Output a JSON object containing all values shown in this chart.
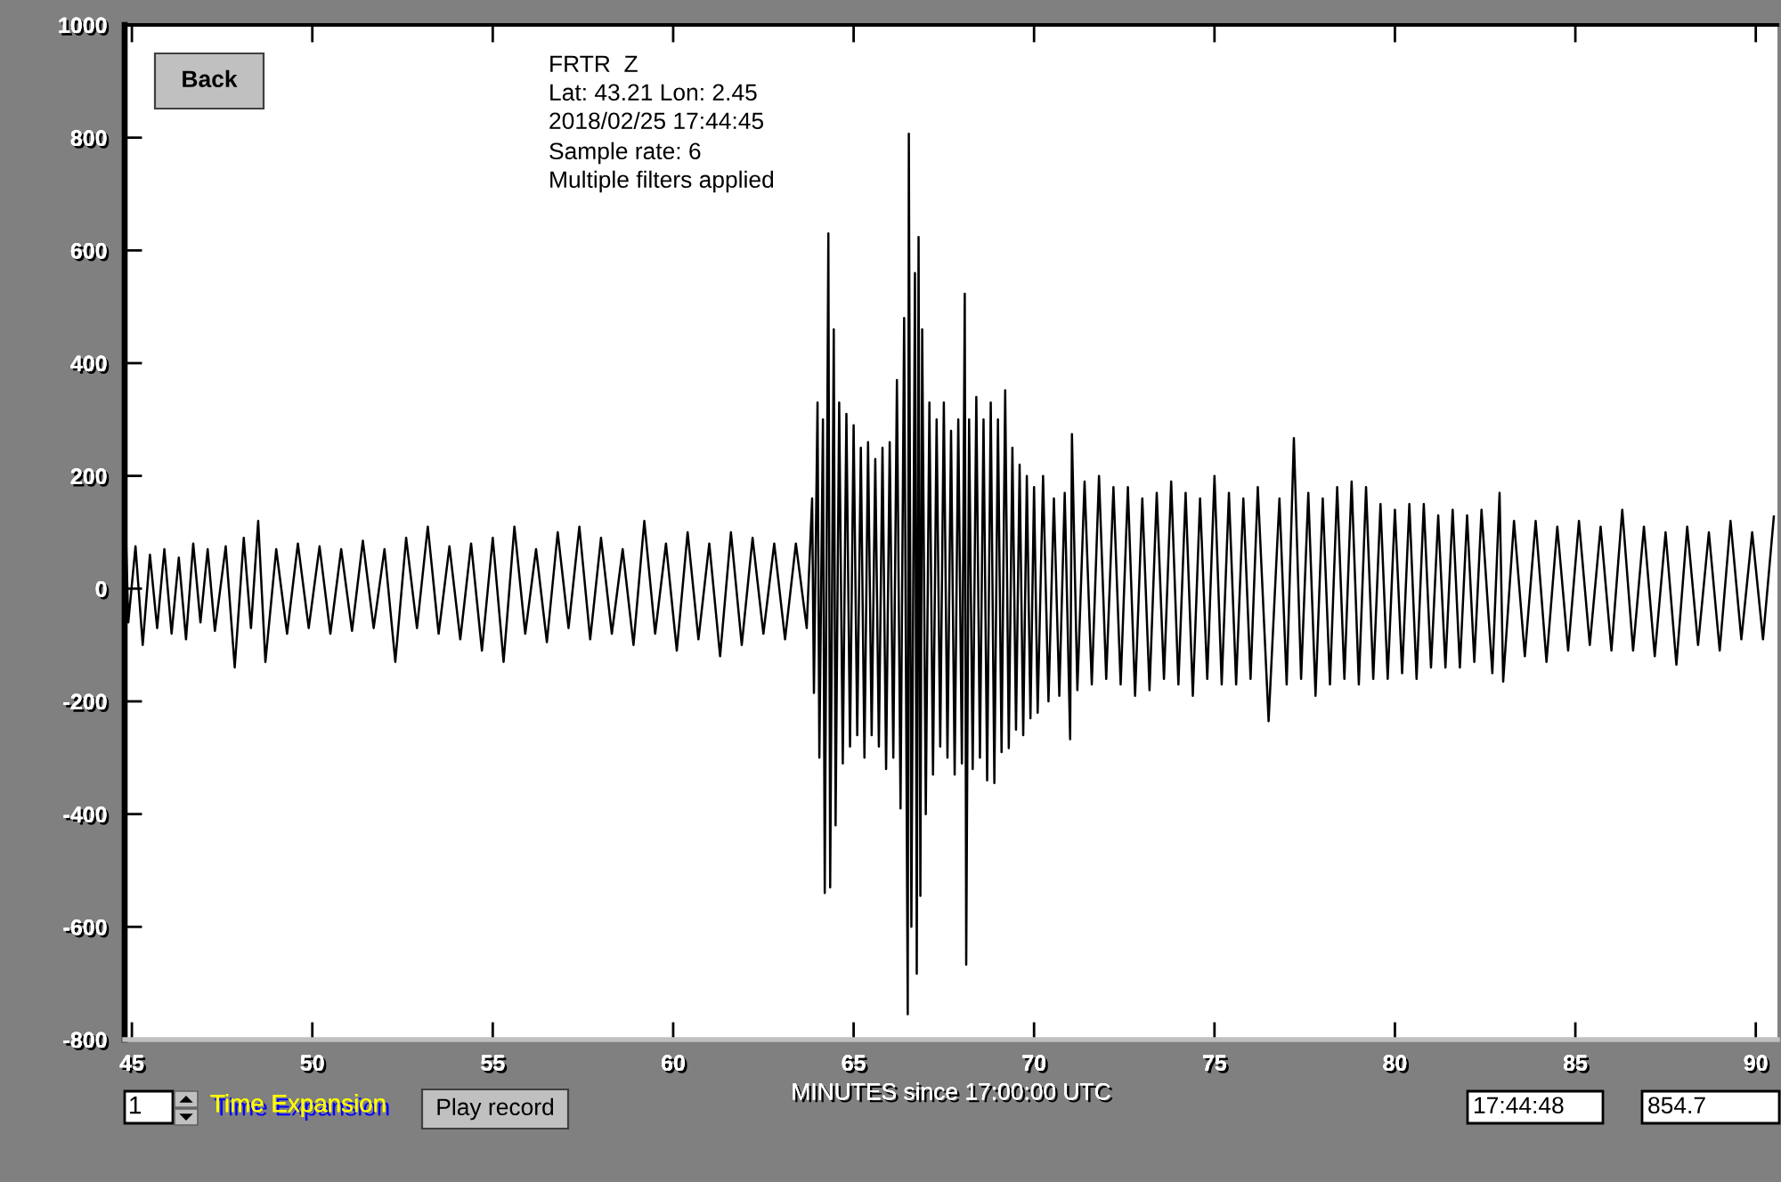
{
  "chart_data": {
    "type": "line",
    "title": "FRTR  Z",
    "xlabel": "MINUTES since 17:00:00 UTC",
    "annotations": [
      "Lat: 43.21 Lon: 2.45",
      "2018/02/25 17:44:45",
      "Sample rate: 6",
      "Multiple filters applied",
      "Back",
      "1",
      "Time Expansion",
      "Play record",
      "17:44:48",
      "854.7"
    ],
    "xlim": [
      44.8,
      90.6
    ],
    "xticks": [
      45,
      50,
      55,
      60,
      65,
      70,
      75,
      80,
      85,
      90
    ],
    "ylim": [
      -800,
      1000
    ],
    "yticks": [
      -800,
      -600,
      -400,
      -200,
      0,
      200,
      400,
      600,
      800,
      1000
    ],
    "x": [
      44.82,
      44.9,
      45.1,
      45.3,
      45.5,
      45.7,
      45.9,
      46.1,
      46.3,
      46.5,
      46.7,
      46.9,
      47.1,
      47.3,
      47.6,
      47.85,
      48.1,
      48.3,
      48.5,
      48.7,
      49.0,
      49.3,
      49.6,
      49.9,
      50.2,
      50.5,
      50.8,
      51.1,
      51.4,
      51.7,
      52.0,
      52.3,
      52.6,
      52.9,
      53.2,
      53.5,
      53.8,
      54.1,
      54.4,
      54.7,
      55.0,
      55.3,
      55.6,
      55.9,
      56.2,
      56.5,
      56.8,
      57.1,
      57.4,
      57.7,
      58.0,
      58.3,
      58.6,
      58.9,
      59.2,
      59.5,
      59.8,
      60.1,
      60.4,
      60.7,
      61.0,
      61.3,
      61.6,
      61.9,
      62.2,
      62.5,
      62.8,
      63.1,
      63.4,
      63.7,
      63.85,
      63.9,
      64.0,
      64.05,
      64.15,
      64.2,
      64.3,
      64.35,
      64.45,
      64.5,
      64.6,
      64.7,
      64.8,
      64.9,
      65.0,
      65.1,
      65.2,
      65.3,
      65.4,
      65.5,
      65.6,
      65.7,
      65.8,
      65.9,
      66.0,
      66.1,
      66.2,
      66.3,
      66.4,
      66.5,
      66.53,
      66.6,
      66.7,
      66.75,
      66.8,
      66.85,
      66.9,
      67.0,
      67.1,
      67.2,
      67.3,
      67.4,
      67.5,
      67.6,
      67.7,
      67.8,
      67.9,
      68.0,
      68.08,
      68.12,
      68.2,
      68.3,
      68.4,
      68.5,
      68.6,
      68.7,
      68.8,
      68.9,
      69.0,
      69.1,
      69.2,
      69.3,
      69.4,
      69.5,
      69.6,
      69.7,
      69.8,
      69.9,
      70.0,
      70.1,
      70.25,
      70.4,
      70.55,
      70.7,
      70.85,
      71.0,
      71.05,
      71.2,
      71.4,
      71.6,
      71.8,
      72.0,
      72.2,
      72.4,
      72.6,
      72.8,
      73.0,
      73.2,
      73.4,
      73.6,
      73.8,
      74.0,
      74.2,
      74.4,
      74.6,
      74.8,
      75.0,
      75.2,
      75.4,
      75.6,
      75.8,
      76.0,
      76.2,
      76.5,
      76.8,
      77.0,
      77.2,
      77.4,
      77.6,
      77.8,
      78.0,
      78.2,
      78.4,
      78.6,
      78.8,
      79.0,
      79.2,
      79.4,
      79.6,
      79.8,
      80.0,
      80.2,
      80.4,
      80.6,
      80.8,
      81.0,
      81.2,
      81.4,
      81.6,
      81.8,
      82.0,
      82.2,
      82.4,
      82.7,
      82.9,
      83.0,
      83.3,
      83.6,
      83.9,
      84.2,
      84.5,
      84.8,
      85.1,
      85.4,
      85.7,
      86.0,
      86.3,
      86.6,
      86.9,
      87.2,
      87.5,
      87.8,
      88.1,
      88.4,
      88.7,
      89.0,
      89.3,
      89.6,
      89.9,
      90.2,
      90.5
    ],
    "series": [
      {
        "color": "#000000",
        "values": [
          130,
          -60,
          75,
          -100,
          60,
          -70,
          70,
          -80,
          55,
          -90,
          80,
          -60,
          70,
          -75,
          75,
          -140,
          90,
          -70,
          120,
          -130,
          70,
          -80,
          80,
          -70,
          75,
          -80,
          70,
          -75,
          85,
          -70,
          70,
          -130,
          90,
          -70,
          110,
          -80,
          75,
          -90,
          80,
          -110,
          90,
          -130,
          110,
          -80,
          70,
          -95,
          100,
          -70,
          110,
          -90,
          90,
          -80,
          70,
          -100,
          120,
          -80,
          80,
          -110,
          100,
          -90,
          80,
          -120,
          100,
          -100,
          90,
          -80,
          80,
          -90,
          80,
          -70,
          160,
          -185,
          330,
          -300,
          300,
          -540,
          630,
          -530,
          460,
          -420,
          330,
          -310,
          310,
          -280,
          290,
          -260,
          250,
          -300,
          260,
          -260,
          230,
          -280,
          250,
          -320,
          260,
          -300,
          370,
          -390,
          480,
          -755,
          807,
          -600,
          560,
          -683,
          624,
          -545,
          460,
          -400,
          330,
          -330,
          300,
          -280,
          330,
          -300,
          280,
          -330,
          300,
          -310,
          523,
          -667,
          300,
          -320,
          340,
          -300,
          300,
          -340,
          330,
          -345,
          300,
          -290,
          352,
          -283,
          250,
          -250,
          220,
          -260,
          200,
          -230,
          180,
          -220,
          200,
          -200,
          160,
          -190,
          170,
          -267,
          274,
          -180,
          190,
          -170,
          200,
          -160,
          180,
          -170,
          180,
          -190,
          160,
          -180,
          170,
          -160,
          190,
          -170,
          170,
          -190,
          160,
          -160,
          200,
          -170,
          170,
          -170,
          160,
          -160,
          180,
          -235,
          160,
          -170,
          267,
          -160,
          170,
          -190,
          160,
          -170,
          180,
          -160,
          190,
          -170,
          180,
          -160,
          150,
          -160,
          140,
          -150,
          150,
          -160,
          150,
          -140,
          130,
          -140,
          140,
          -140,
          130,
          -130,
          140,
          -150,
          170,
          -165,
          120,
          -120,
          120,
          -130,
          110,
          -110,
          120,
          -100,
          110,
          -110,
          140,
          -110,
          110,
          -120,
          100,
          -135,
          110,
          -100,
          100,
          -110,
          120,
          -90,
          100,
          -90,
          128
        ]
      }
    ]
  }
}
